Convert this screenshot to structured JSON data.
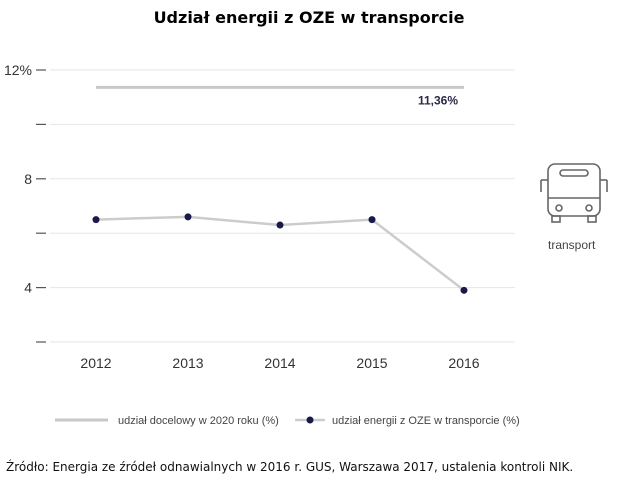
{
  "title": "Udział energii z OZE w transporcie",
  "source": "Źródło: Energia ze źródeł odnawialnych w 2016 r. GUS, Warszawa 2017, ustalenia kontroli NIK.",
  "icon": {
    "name": "bus-icon",
    "label": "transport"
  },
  "chart_data": {
    "type": "line",
    "title": "Udział energii z OZE w transporcie",
    "categories": [
      "2012",
      "2013",
      "2014",
      "2015",
      "2016"
    ],
    "y_ticks": [
      {
        "value": 12,
        "label": "12%"
      },
      {
        "value": 10,
        "label": ""
      },
      {
        "value": 8,
        "label": "8"
      },
      {
        "value": 6,
        "label": ""
      },
      {
        "value": 4,
        "label": "4"
      },
      {
        "value": 2,
        "label": ""
      }
    ],
    "ylim": [
      2,
      12
    ],
    "series": [
      {
        "name": "udział docelowy w 2020 roku (%)",
        "style": "target-line",
        "color": "#c8c8c8",
        "values": [
          11.36,
          11.36,
          11.36,
          11.36,
          11.36
        ],
        "label": "11,36%"
      },
      {
        "name": "udział energii z OZE w transporcie (%)",
        "style": "line-markers",
        "color": "#cccccc",
        "marker_color": "#1a1a4a",
        "values": [
          6.5,
          6.6,
          6.3,
          6.5,
          3.9
        ]
      }
    ],
    "legend": "bottom"
  }
}
